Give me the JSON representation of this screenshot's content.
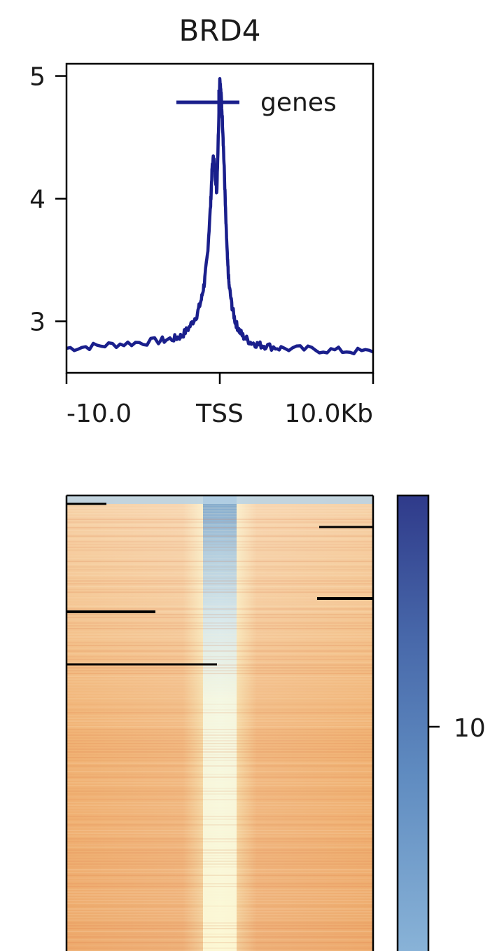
{
  "chart_data": [
    {
      "type": "line",
      "title": "BRD4",
      "x_tick_labels": [
        "-10.0",
        "TSS",
        "10.0Kb"
      ],
      "y_tick_labels": [
        "3",
        "4",
        "5"
      ],
      "y_ticks": [
        3,
        4,
        5
      ],
      "xlim": [
        -10000,
        10000
      ],
      "ylim": [
        2.58,
        5.1
      ],
      "series": [
        {
          "name": "genes",
          "color": "#1a1f8c",
          "x": [
            -10000,
            -8000,
            -6000,
            -4000,
            -3000,
            -2500,
            -2000,
            -1500,
            -1200,
            -1000,
            -800,
            -600,
            -500,
            -400,
            -300,
            -200,
            -100,
            0,
            100,
            200,
            300,
            400,
            500,
            600,
            800,
            1000,
            1200,
            1500,
            2000,
            2500,
            3000,
            4000,
            6000,
            8000,
            10000
          ],
          "values": [
            2.78,
            2.8,
            2.82,
            2.84,
            2.86,
            2.88,
            2.95,
            3.05,
            3.18,
            3.32,
            3.55,
            3.95,
            4.25,
            4.35,
            4.2,
            4.05,
            4.5,
            4.98,
            4.82,
            4.55,
            4.2,
            3.8,
            3.5,
            3.3,
            3.12,
            3.0,
            2.94,
            2.88,
            2.83,
            2.81,
            2.8,
            2.78,
            2.77,
            2.76,
            2.75
          ]
        }
      ],
      "legend_position": "top-right"
    },
    {
      "type": "heatmap",
      "description_colormap": "RdYlBu",
      "colorbar_tick_labels": [
        "10"
      ],
      "colorbar_ticks": [
        10
      ],
      "colorbar_range": [
        3,
        14
      ]
    }
  ]
}
